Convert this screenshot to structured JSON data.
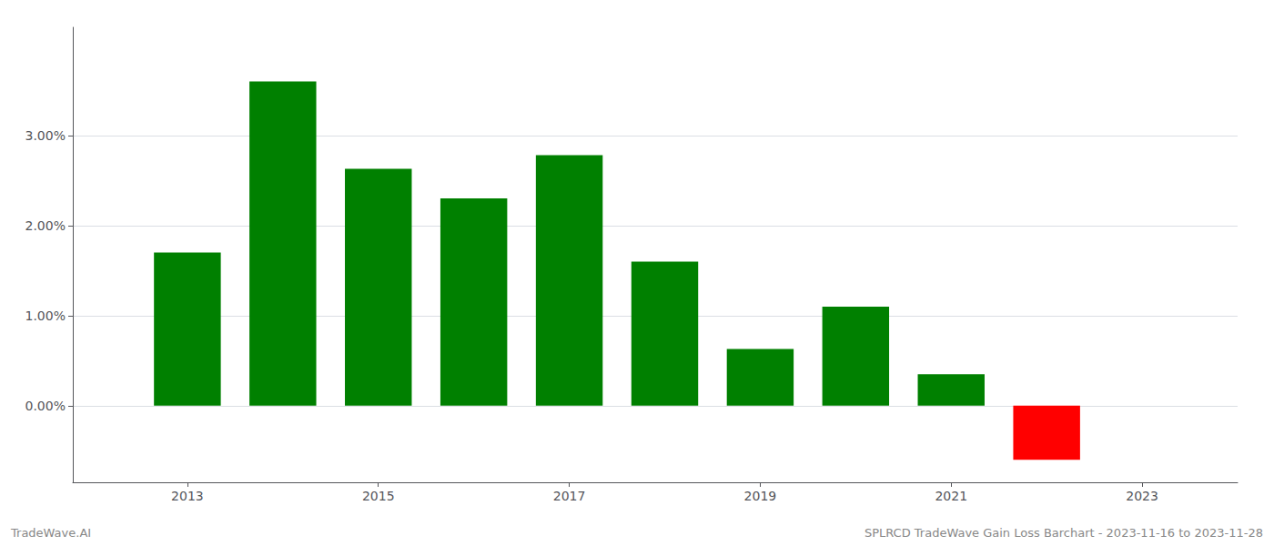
{
  "chart_data": {
    "type": "bar",
    "x": [
      2013,
      2014,
      2015,
      2016,
      2017,
      2018,
      2019,
      2020,
      2021,
      2022
    ],
    "values": [
      1.7,
      3.6,
      2.63,
      2.3,
      2.78,
      1.6,
      0.63,
      1.1,
      0.35,
      -0.6
    ],
    "colors": [
      "#008000",
      "#008000",
      "#008000",
      "#008000",
      "#008000",
      "#008000",
      "#008000",
      "#008000",
      "#008000",
      "#ff0000"
    ],
    "xlim": [
      2011.8,
      2024.0
    ],
    "xticks": [
      2013,
      2015,
      2017,
      2019,
      2021,
      2023
    ],
    "ylim": [
      -0.85,
      4.2
    ],
    "yticks": [
      {
        "value": 0.0,
        "label": "0.00%"
      },
      {
        "value": 1.0,
        "label": "1.00%"
      },
      {
        "value": 2.0,
        "label": "2.00%"
      },
      {
        "value": 3.0,
        "label": "3.00%"
      }
    ],
    "grid": true,
    "annotations": [
      "TradeWave.AI",
      "SPLRCD TradeWave Gain Loss Barchart - 2023-11-16 to 2023-11-28"
    ]
  }
}
